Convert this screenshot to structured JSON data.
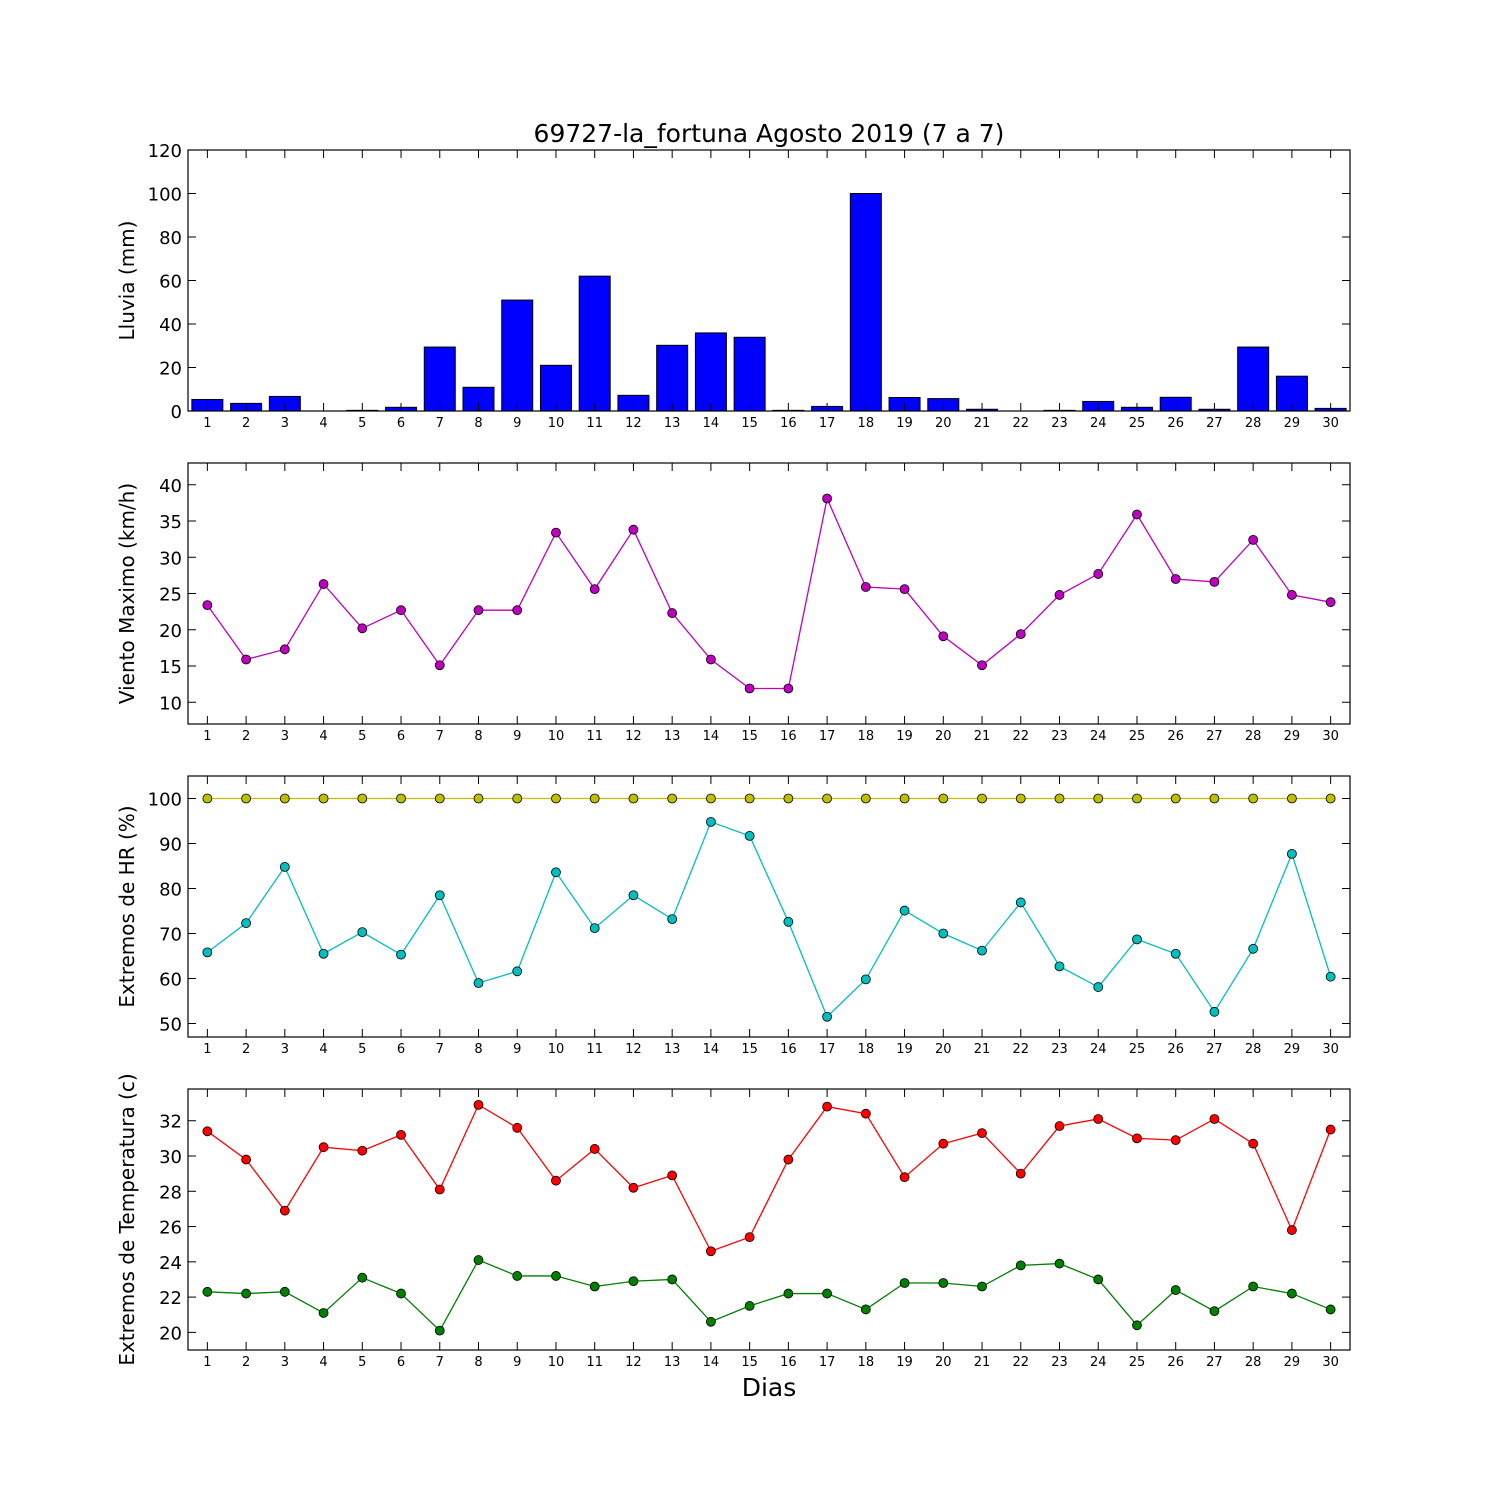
{
  "title": "69727-la_fortuna Agosto 2019  (7 a 7)",
  "xlabel": "Dias",
  "chart_data": [
    {
      "type": "bar",
      "ylabel": "Lluvia (mm)",
      "x": [
        1,
        2,
        3,
        4,
        5,
        6,
        7,
        8,
        9,
        10,
        11,
        12,
        13,
        14,
        15,
        16,
        17,
        18,
        19,
        20,
        21,
        22,
        23,
        24,
        25,
        26,
        27,
        28,
        29,
        30
      ],
      "xlim": [
        0.5,
        30.5
      ],
      "ylim": [
        0,
        120
      ],
      "yticks": [
        0,
        20,
        40,
        60,
        80,
        100,
        120
      ],
      "grid": false,
      "series": [
        {
          "color": "#0000ff",
          "values": [
            5.3,
            3.5,
            6.7,
            0,
            0.3,
            1.7,
            29.4,
            10.9,
            51,
            21,
            62,
            7.2,
            30.2,
            35.9,
            33.9,
            0.3,
            2.1,
            100,
            6.2,
            5.7,
            0.8,
            0,
            0.3,
            4.4,
            1.7,
            6.3,
            0.8,
            29.4,
            16,
            1.2
          ]
        }
      ]
    },
    {
      "type": "line",
      "ylabel": "Viento Maximo (km/h)",
      "x": [
        1,
        2,
        3,
        4,
        5,
        6,
        7,
        8,
        9,
        10,
        11,
        12,
        13,
        14,
        15,
        16,
        17,
        18,
        19,
        20,
        21,
        22,
        23,
        24,
        25,
        26,
        27,
        28,
        29,
        30
      ],
      "xlim": [
        0.5,
        30.5
      ],
      "ylim": [
        7,
        43
      ],
      "yticks": [
        10,
        15,
        20,
        25,
        30,
        35,
        40
      ],
      "grid": false,
      "series": [
        {
          "color": "#bf00bf",
          "values": [
            23.4,
            15.9,
            17.3,
            26.3,
            20.2,
            22.7,
            15.1,
            22.7,
            22.7,
            33.4,
            25.6,
            33.8,
            22.3,
            15.9,
            11.9,
            11.9,
            38.1,
            25.9,
            25.6,
            19.1,
            15.1,
            19.4,
            24.8,
            27.7,
            35.9,
            27.0,
            26.6,
            32.4,
            24.8,
            23.8
          ]
        }
      ]
    },
    {
      "type": "line",
      "ylabel": "Extremos de HR (%)",
      "x": [
        1,
        2,
        3,
        4,
        5,
        6,
        7,
        8,
        9,
        10,
        11,
        12,
        13,
        14,
        15,
        16,
        17,
        18,
        19,
        20,
        21,
        22,
        23,
        24,
        25,
        26,
        27,
        28,
        29,
        30
      ],
      "xlim": [
        0.5,
        30.5
      ],
      "ylim": [
        47,
        105
      ],
      "yticks": [
        50,
        60,
        70,
        80,
        90,
        100
      ],
      "grid": false,
      "series": [
        {
          "color": "#bfbf00",
          "values": [
            100,
            100,
            100,
            100,
            100,
            100,
            100,
            100,
            100,
            100,
            100,
            100,
            100,
            100,
            100,
            100,
            100,
            100,
            100,
            100,
            100,
            100,
            100,
            100,
            100,
            100,
            100,
            100,
            100,
            100
          ]
        },
        {
          "color": "#00bfbf",
          "values": [
            65.8,
            72.3,
            84.8,
            65.5,
            70.3,
            65.3,
            78.5,
            59.0,
            61.6,
            83.6,
            71.2,
            78.5,
            73.2,
            94.8,
            91.7,
            72.6,
            51.5,
            59.8,
            75.1,
            70.0,
            66.2,
            76.9,
            62.7,
            58.1,
            68.7,
            65.5,
            52.6,
            66.6,
            87.7,
            60.4
          ]
        }
      ]
    },
    {
      "type": "line",
      "ylabel": "Extremos de Temperatura (c)",
      "x": [
        1,
        2,
        3,
        4,
        5,
        6,
        7,
        8,
        9,
        10,
        11,
        12,
        13,
        14,
        15,
        16,
        17,
        18,
        19,
        20,
        21,
        22,
        23,
        24,
        25,
        26,
        27,
        28,
        29,
        30
      ],
      "xlim": [
        0.5,
        30.5
      ],
      "ylim": [
        19.0,
        33.8
      ],
      "yticks": [
        20,
        22,
        24,
        26,
        28,
        30,
        32
      ],
      "grid": false,
      "series": [
        {
          "color": "#ff0000",
          "values": [
            31.4,
            29.8,
            26.9,
            30.5,
            30.3,
            31.2,
            28.1,
            32.9,
            31.6,
            28.6,
            30.4,
            28.2,
            28.9,
            24.6,
            25.4,
            29.8,
            32.8,
            32.4,
            28.8,
            30.7,
            31.3,
            29.0,
            31.7,
            32.1,
            31.0,
            30.9,
            32.1,
            30.7,
            25.8,
            31.5
          ]
        },
        {
          "color": "#007f00",
          "values": [
            22.3,
            22.2,
            22.3,
            21.1,
            23.1,
            22.2,
            20.1,
            24.1,
            23.2,
            23.2,
            22.6,
            22.9,
            23.0,
            20.6,
            21.5,
            22.2,
            22.2,
            21.3,
            22.8,
            22.8,
            22.6,
            23.8,
            23.9,
            23.0,
            20.4,
            22.4,
            21.2,
            22.6,
            22.2,
            21.3
          ]
        }
      ]
    }
  ]
}
